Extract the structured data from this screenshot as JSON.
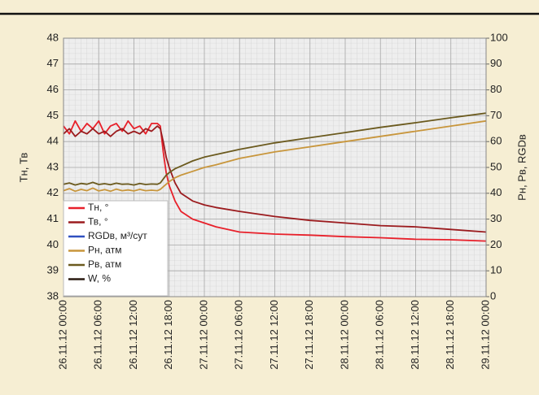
{
  "chart_data": {
    "type": "line",
    "y_label": "Тн, Тв",
    "y2_label": "Рн, Рв, RGDв",
    "xlim": [
      0,
      72
    ],
    "xticks": [
      {
        "value": 0,
        "label": "26.11.12 00:00"
      },
      {
        "value": 6,
        "label": "26.11.12 06:00"
      },
      {
        "value": 12,
        "label": "26.11.12 12:00"
      },
      {
        "value": 18,
        "label": "26.11.12 18:00"
      },
      {
        "value": 24,
        "label": "27.11.12 00:00"
      },
      {
        "value": 30,
        "label": "27.11.12 06:00"
      },
      {
        "value": 36,
        "label": "27.11.12 12:00"
      },
      {
        "value": 42,
        "label": "27.11.12 18:00"
      },
      {
        "value": 48,
        "label": "28.11.12 00:00"
      },
      {
        "value": 54,
        "label": "28.11.12 06:00"
      },
      {
        "value": 60,
        "label": "28.11.12 12:00"
      },
      {
        "value": 66,
        "label": "28.11.12 18:00"
      },
      {
        "value": 72,
        "label": "29.11.12 00:00"
      }
    ],
    "ylim": [
      38,
      48
    ],
    "yticks": [
      38,
      39,
      40,
      41,
      42,
      43,
      44,
      45,
      46,
      47,
      48
    ],
    "y2lim": [
      0,
      100
    ],
    "y2ticks": [
      0,
      10,
      20,
      30,
      40,
      50,
      60,
      70,
      80,
      90,
      100
    ],
    "grid": true,
    "legend": "lower left",
    "x": [
      0,
      1,
      2,
      3,
      4,
      5,
      6,
      7,
      8,
      9,
      10,
      11,
      12,
      13,
      14,
      15,
      16,
      16.5,
      17,
      17.5,
      18,
      19,
      20,
      22,
      24,
      26,
      30,
      36,
      42,
      48,
      54,
      60,
      66,
      72
    ],
    "series": [
      {
        "name": "Тн, °",
        "color": "#e8202a",
        "axis": "y",
        "values": [
          44.6,
          44.3,
          44.8,
          44.4,
          44.7,
          44.5,
          44.8,
          44.3,
          44.6,
          44.7,
          44.4,
          44.8,
          44.5,
          44.6,
          44.3,
          44.7,
          44.7,
          44.6,
          43.6,
          42.8,
          42.3,
          41.7,
          41.3,
          41.0,
          40.85,
          40.7,
          40.5,
          40.42,
          40.38,
          40.32,
          40.28,
          40.22,
          40.2,
          40.15
        ]
      },
      {
        "name": "Тв, °",
        "color": "#9b1b1e",
        "axis": "y",
        "values": [
          44.3,
          44.5,
          44.2,
          44.4,
          44.3,
          44.5,
          44.3,
          44.4,
          44.2,
          44.4,
          44.5,
          44.3,
          44.4,
          44.3,
          44.5,
          44.4,
          44.6,
          44.5,
          44.0,
          43.4,
          43.0,
          42.4,
          42.0,
          41.7,
          41.55,
          41.45,
          41.3,
          41.1,
          40.95,
          40.85,
          40.75,
          40.7,
          40.6,
          40.5
        ]
      },
      {
        "name": "RGDв, м³/сут",
        "color": "#3050c0",
        "axis": "y2",
        "values": [
          null,
          null,
          null,
          null,
          null,
          null,
          null,
          null,
          null,
          null,
          null,
          null,
          null,
          null,
          null,
          null,
          null,
          null,
          null,
          null,
          null,
          null,
          null,
          null,
          null,
          null,
          null,
          null,
          null,
          null,
          null,
          null,
          null,
          null
        ]
      },
      {
        "name": "Рн, атм",
        "color": "#c8963c",
        "axis": "y2",
        "values": [
          41,
          41.8,
          40.8,
          41.5,
          41,
          42,
          40.9,
          41.4,
          40.8,
          41.6,
          41,
          41.3,
          40.9,
          41.5,
          41,
          41.2,
          41,
          41.5,
          42.5,
          43.5,
          44.5,
          46,
          47,
          48.5,
          50,
          51,
          53.5,
          56,
          58,
          60,
          62,
          64,
          66,
          68
        ]
      },
      {
        "name": "Рв, атм",
        "color": "#6b5a1e",
        "axis": "y2",
        "values": [
          43.5,
          44,
          43.2,
          43.8,
          43.5,
          44.2,
          43.4,
          43.7,
          43.3,
          43.9,
          43.5,
          43.6,
          43.2,
          43.8,
          43.4,
          43.6,
          43.5,
          44,
          45.5,
          47,
          48,
          49.5,
          50.5,
          52.5,
          54,
          55,
          57,
          59.5,
          61.5,
          63.5,
          65.5,
          67.3,
          69.2,
          71
        ]
      },
      {
        "name": "W, %",
        "color": "#2a1a10",
        "axis": "y2",
        "values": [
          null,
          null,
          null,
          null,
          null,
          null,
          null,
          null,
          null,
          null,
          null,
          null,
          null,
          null,
          null,
          null,
          null,
          null,
          null,
          null,
          null,
          null,
          null,
          null,
          null,
          null,
          null,
          null,
          null,
          null,
          null,
          null,
          null,
          null
        ]
      }
    ]
  }
}
